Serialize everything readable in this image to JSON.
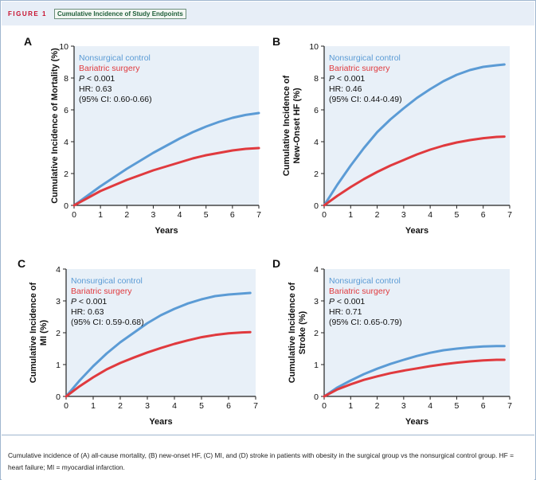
{
  "figure": {
    "label": "FIGURE 1",
    "title": "Cumulative Incidence of Study Endpoints"
  },
  "caption": {
    "text": "Cumulative incidence of (A) all-cause mortality, (B) new-onset HF, (C) MI, and (D) stroke in patients with obesity in the surgical group vs the nonsurgical control group. HF = heart failure; MI = myocardial infarction."
  },
  "colors": {
    "nonsurgical": "#5b9bd5",
    "bariatric": "#e03a3e",
    "plot_background": "#e8f0f8"
  },
  "chart_data": [
    {
      "type": "line",
      "panel": "A",
      "xlabel": "Years",
      "ylabel": "Cumulative Incidence of Mortality (%)",
      "xlim": [
        0,
        7
      ],
      "ylim": [
        0,
        10
      ],
      "xticks": [
        0,
        1,
        2,
        3,
        4,
        5,
        6,
        7
      ],
      "yticks": [
        0,
        2,
        4,
        6,
        8,
        10
      ],
      "legend": [
        "Nonsurgical control",
        "Bariatric surgery"
      ],
      "stats": [
        "P < 0.001",
        "HR: 0.63",
        "(95% CI: 0.60-0.66)"
      ],
      "series": [
        {
          "name": "Nonsurgical control",
          "x": [
            0,
            0.5,
            1,
            1.5,
            2,
            2.5,
            3,
            3.5,
            4,
            4.5,
            5,
            5.5,
            6,
            6.5,
            7
          ],
          "y": [
            0,
            0.6,
            1.2,
            1.75,
            2.3,
            2.8,
            3.3,
            3.75,
            4.2,
            4.6,
            4.95,
            5.25,
            5.5,
            5.68,
            5.8
          ]
        },
        {
          "name": "Bariatric surgery",
          "x": [
            0,
            0.5,
            1,
            1.5,
            2,
            2.5,
            3,
            3.5,
            4,
            4.5,
            5,
            5.5,
            6,
            6.5,
            7
          ],
          "y": [
            0,
            0.45,
            0.9,
            1.25,
            1.6,
            1.9,
            2.2,
            2.45,
            2.7,
            2.95,
            3.15,
            3.3,
            3.45,
            3.55,
            3.6
          ]
        }
      ]
    },
    {
      "type": "line",
      "panel": "B",
      "xlabel": "Years",
      "ylabel": "Cumulative Incidence of New-Onset HF (%)",
      "xlim": [
        0,
        7
      ],
      "ylim": [
        0,
        10
      ],
      "xticks": [
        0,
        1,
        2,
        3,
        4,
        5,
        6,
        7
      ],
      "yticks": [
        0,
        2,
        4,
        6,
        8,
        10
      ],
      "legend": [
        "Nonsurgical control",
        "Bariatric surgery"
      ],
      "stats": [
        "P < 0.001",
        "HR: 0.46",
        "(95% CI: 0.44-0.49)"
      ],
      "series": [
        {
          "name": "Nonsurgical control",
          "x": [
            0,
            0.5,
            1,
            1.5,
            2,
            2.5,
            3,
            3.5,
            4,
            4.5,
            5,
            5.5,
            6,
            6.5,
            6.8
          ],
          "y": [
            0,
            1.3,
            2.5,
            3.6,
            4.6,
            5.4,
            6.1,
            6.75,
            7.3,
            7.8,
            8.2,
            8.5,
            8.7,
            8.8,
            8.85
          ]
        },
        {
          "name": "Bariatric surgery",
          "x": [
            0,
            0.5,
            1,
            1.5,
            2,
            2.5,
            3,
            3.5,
            4,
            4.5,
            5,
            5.5,
            6,
            6.5,
            6.8
          ],
          "y": [
            0,
            0.6,
            1.15,
            1.65,
            2.1,
            2.5,
            2.85,
            3.2,
            3.5,
            3.75,
            3.95,
            4.1,
            4.22,
            4.3,
            4.32
          ]
        }
      ]
    },
    {
      "type": "line",
      "panel": "C",
      "xlabel": "Years",
      "ylabel": "Cumulative Incidence of MI (%)",
      "xlim": [
        0,
        7
      ],
      "ylim": [
        0,
        4
      ],
      "xticks": [
        0,
        1,
        2,
        3,
        4,
        5,
        6,
        7
      ],
      "yticks": [
        0,
        1,
        2,
        3,
        4
      ],
      "legend": [
        "Nonsurgical control",
        "Bariatric surgery"
      ],
      "stats": [
        "P < 0.001",
        "HR: 0.63",
        "(95% CI: 0.59-0.68)"
      ],
      "series": [
        {
          "name": "Nonsurgical control",
          "x": [
            0,
            0.5,
            1,
            1.5,
            2,
            2.5,
            3,
            3.5,
            4,
            4.5,
            5,
            5.5,
            6,
            6.5,
            6.8
          ],
          "y": [
            0,
            0.5,
            0.95,
            1.35,
            1.7,
            2.0,
            2.3,
            2.55,
            2.75,
            2.92,
            3.05,
            3.15,
            3.2,
            3.23,
            3.25
          ]
        },
        {
          "name": "Bariatric surgery",
          "x": [
            0,
            0.5,
            1,
            1.5,
            2,
            2.5,
            3,
            3.5,
            4,
            4.5,
            5,
            5.5,
            6,
            6.5,
            6.8
          ],
          "y": [
            0,
            0.32,
            0.6,
            0.85,
            1.05,
            1.22,
            1.38,
            1.52,
            1.65,
            1.76,
            1.86,
            1.93,
            1.98,
            2.01,
            2.02
          ]
        }
      ]
    },
    {
      "type": "line",
      "panel": "D",
      "xlabel": "Years",
      "ylabel": "Cumulative Incidence of Stroke (%)",
      "xlim": [
        0,
        7
      ],
      "ylim": [
        0,
        4
      ],
      "xticks": [
        0,
        1,
        2,
        3,
        4,
        5,
        6,
        7
      ],
      "yticks": [
        0,
        1,
        2,
        3,
        4
      ],
      "legend": [
        "Nonsurgical control",
        "Bariatric surgery"
      ],
      "stats": [
        "P < 0.001",
        "HR: 0.71",
        "(95% CI: 0.65-0.79)"
      ],
      "series": [
        {
          "name": "Nonsurgical control",
          "x": [
            0,
            0.5,
            1,
            1.5,
            2,
            2.5,
            3,
            3.5,
            4,
            4.5,
            5,
            5.5,
            6,
            6.5,
            6.8
          ],
          "y": [
            0,
            0.28,
            0.5,
            0.7,
            0.87,
            1.02,
            1.15,
            1.27,
            1.37,
            1.45,
            1.5,
            1.54,
            1.57,
            1.58,
            1.58
          ]
        },
        {
          "name": "Bariatric surgery",
          "x": [
            0,
            0.5,
            1,
            1.5,
            2,
            2.5,
            3,
            3.5,
            4,
            4.5,
            5,
            5.5,
            6,
            6.5,
            6.8
          ],
          "y": [
            0,
            0.22,
            0.38,
            0.52,
            0.63,
            0.73,
            0.81,
            0.88,
            0.95,
            1.01,
            1.06,
            1.1,
            1.13,
            1.15,
            1.15
          ]
        }
      ]
    }
  ]
}
